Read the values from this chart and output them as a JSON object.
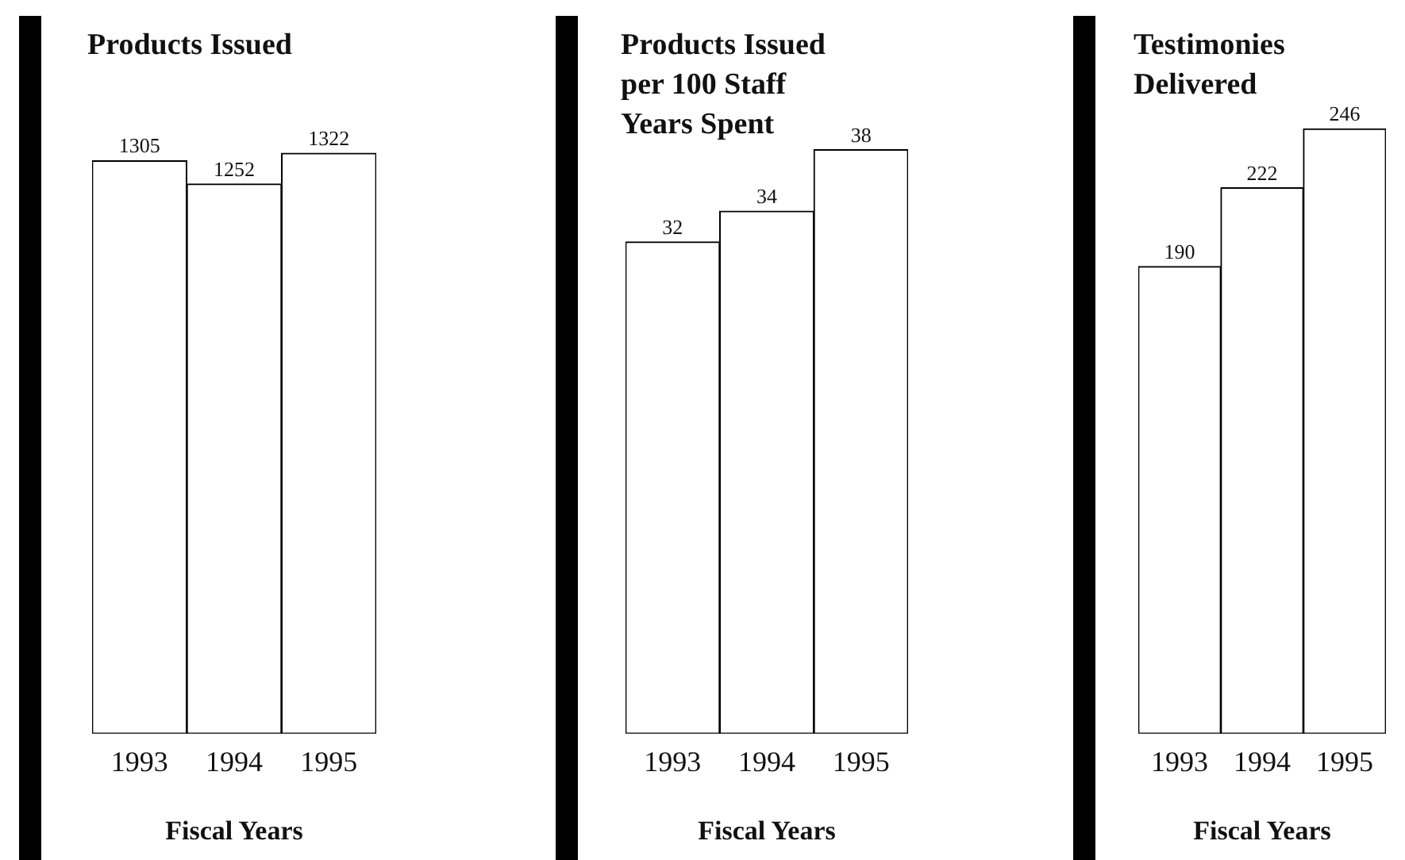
{
  "chart_data": [
    {
      "type": "bar",
      "title": "Products Issued",
      "xlabel": "Fiscal Years",
      "categories": [
        "1993",
        "1994",
        "1995"
      ],
      "values": [
        1305,
        1252,
        1322
      ],
      "color": "#ffffff",
      "tick_labels": "x",
      "data_labels": true,
      "grid": false,
      "legend": false
    },
    {
      "type": "bar",
      "title": "Products Issued per 100 Staff Years Spent",
      "xlabel": "Fiscal Years",
      "categories": [
        "1993",
        "1994",
        "1995"
      ],
      "values": [
        32,
        34,
        38
      ],
      "color": "#ffffff",
      "tick_labels": "x",
      "data_labels": true,
      "grid": false,
      "legend": false
    },
    {
      "type": "bar",
      "title": "Testimonies Delivered",
      "xlabel": "Fiscal Years",
      "categories": [
        "1993",
        "1994",
        "1995"
      ],
      "values": [
        190,
        222,
        246
      ],
      "color": "#ffffff",
      "tick_labels": "x",
      "data_labels": true,
      "grid": false,
      "legend": false
    }
  ]
}
